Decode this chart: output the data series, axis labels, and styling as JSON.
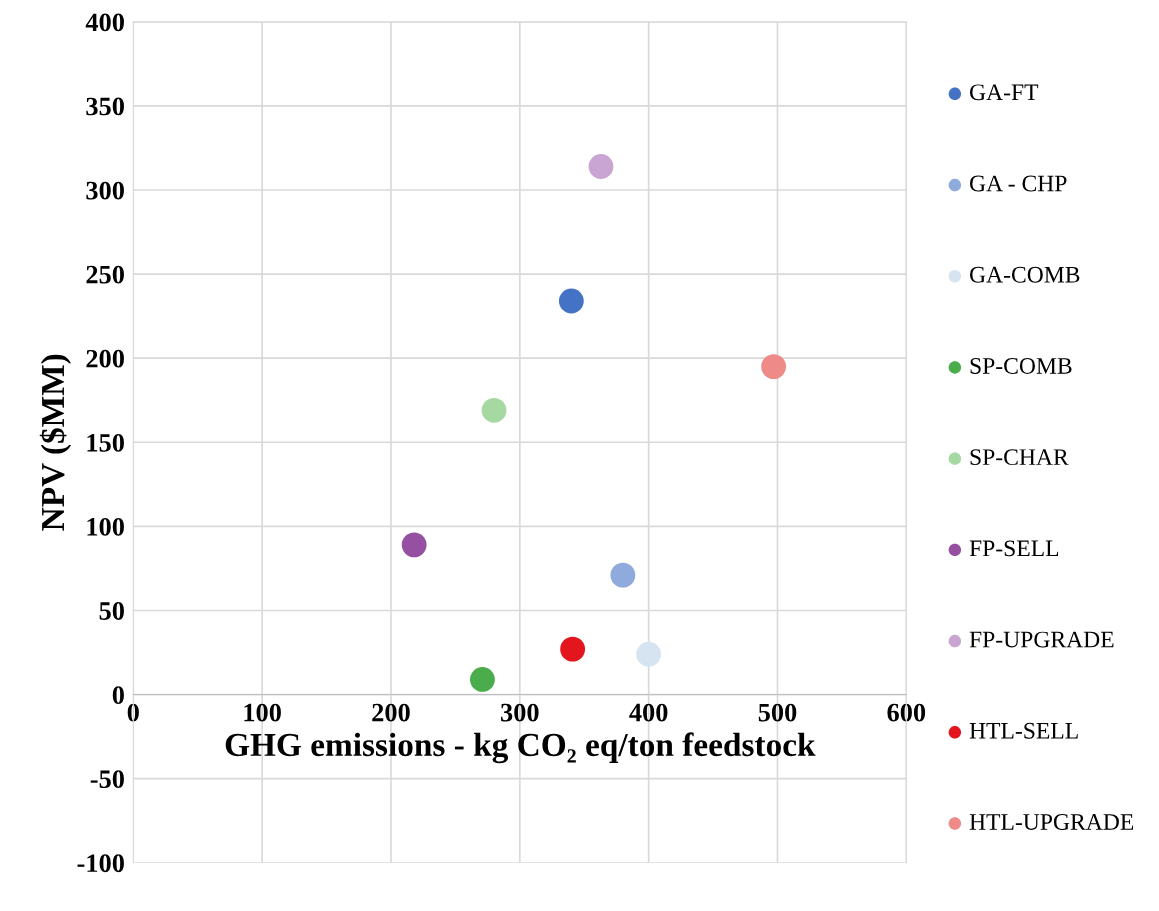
{
  "chart_data": {
    "type": "scatter",
    "xlabel": "GHG emissions - kg CO₂ eq/ton feedstock",
    "ylabel": "NPV ($MM)",
    "xlim": [
      0,
      600
    ],
    "xticks": [
      0,
      100,
      200,
      300,
      400,
      500,
      600
    ],
    "ylim": [
      -100,
      400
    ],
    "yticks": [
      -100,
      -50,
      0,
      50,
      100,
      150,
      200,
      250,
      300,
      350,
      400
    ],
    "grid": true,
    "legend": "right",
    "marker": "circle",
    "series": [
      {
        "name": "GA-FT",
        "color": "#4472c4",
        "x": [
          340
        ],
        "values": [
          234
        ]
      },
      {
        "name": "GA - CHP",
        "color": "#8faadc",
        "x": [
          380
        ],
        "values": [
          71
        ]
      },
      {
        "name": "GA-COMB",
        "color": "#d6e3f0",
        "x": [
          400
        ],
        "values": [
          24
        ]
      },
      {
        "name": "SP-COMB",
        "color": "#4aac4a",
        "x": [
          271
        ],
        "values": [
          9
        ]
      },
      {
        "name": "SP-CHAR",
        "color": "#a6d8a2",
        "x": [
          280
        ],
        "values": [
          169
        ]
      },
      {
        "name": "FP-SELL",
        "color": "#9550a2",
        "x": [
          218
        ],
        "values": [
          89
        ]
      },
      {
        "name": "FP-UPGRADE",
        "color": "#c9a5d3",
        "x": [
          363
        ],
        "values": [
          314
        ]
      },
      {
        "name": "HTL-SELL",
        "color": "#e2161c",
        "x": [
          341
        ],
        "values": [
          27
        ]
      },
      {
        "name": "HTL-UPGRADE",
        "color": "#ee8a88",
        "x": [
          497
        ],
        "values": [
          195
        ]
      }
    ]
  }
}
